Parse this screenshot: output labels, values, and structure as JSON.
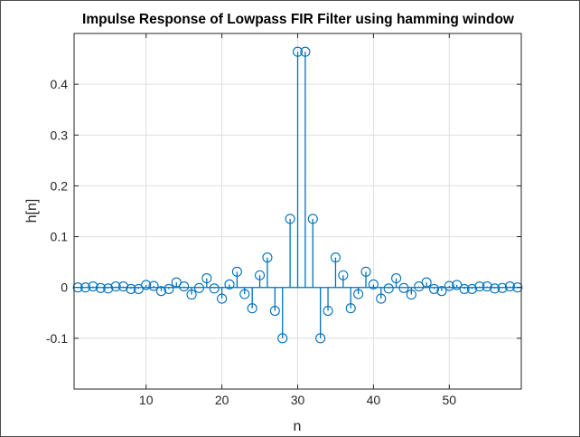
{
  "chart_data": {
    "type": "stem",
    "title": "Impulse Response of Lowpass FIR Filter using hamming window",
    "xlabel": "n",
    "ylabel": "h[n]",
    "xlim": [
      0.5,
      59.5
    ],
    "ylim": [
      -0.2,
      0.5
    ],
    "xticks": [
      10,
      20,
      30,
      40,
      50
    ],
    "yticks": [
      -0.1,
      0,
      0.1,
      0.2,
      0.3,
      0.4
    ],
    "ytick_labels": [
      "-0.1",
      "0",
      "0.1",
      "0.2",
      "0.3",
      "0.4"
    ],
    "grid": true,
    "color": "#0072BD",
    "x": [
      1,
      2,
      3,
      4,
      5,
      6,
      7,
      8,
      9,
      10,
      11,
      12,
      13,
      14,
      15,
      16,
      17,
      18,
      19,
      20,
      21,
      22,
      23,
      24,
      25,
      26,
      27,
      28,
      29,
      30,
      31,
      32,
      33,
      34,
      35,
      36,
      37,
      38,
      39,
      40,
      41,
      42,
      43,
      44,
      45,
      46,
      47,
      48,
      49,
      50,
      51,
      52,
      53,
      54,
      55,
      56,
      57,
      58,
      59,
      60
    ],
    "values": [
      0,
      0,
      0.002,
      -0.001,
      -0.002,
      0.002,
      0.002,
      -0.003,
      -0.003,
      0.005,
      0.003,
      -0.007,
      -0.003,
      0.01,
      0.002,
      -0.014,
      -0.001,
      0.018,
      -0.002,
      -0.022,
      0.006,
      0.031,
      -0.013,
      -0.041,
      0.024,
      0.059,
      -0.046,
      -0.1,
      0.135,
      0.464,
      0.464,
      0.135,
      -0.1,
      -0.046,
      0.059,
      0.024,
      -0.041,
      -0.013,
      0.031,
      0.006,
      -0.022,
      -0.002,
      0.018,
      -0.001,
      -0.014,
      0.002,
      0.01,
      -0.003,
      -0.007,
      0.003,
      0.005,
      -0.003,
      -0.003,
      0.002,
      0.002,
      -0.002,
      -0.001,
      0.002,
      0,
      0
    ]
  }
}
